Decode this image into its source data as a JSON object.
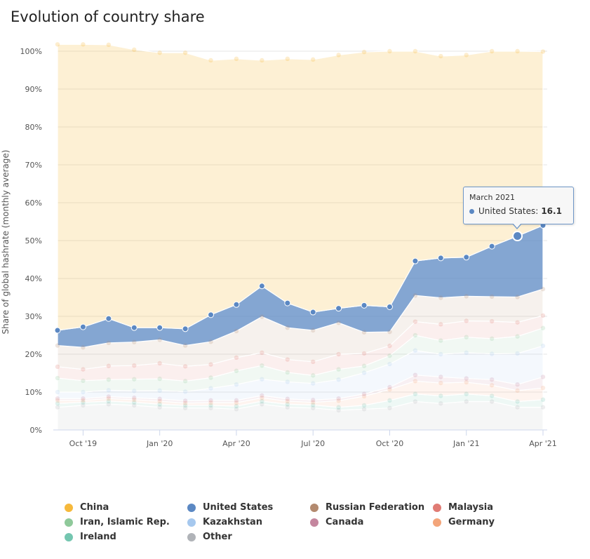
{
  "page": {
    "title": "Evolution of country share"
  },
  "chart_data": {
    "type": "area",
    "stacked": true,
    "ylabel": "Share of global hashrate (monthly average)",
    "xlabel": "",
    "ylim": [
      0,
      100
    ],
    "yticks": [
      "0%",
      "10%",
      "20%",
      "30%",
      "40%",
      "50%",
      "60%",
      "70%",
      "80%",
      "90%",
      "100%"
    ],
    "xtick_labels": [
      {
        "label": "Oct '19",
        "month": "2019-10"
      },
      {
        "label": "Jan '20",
        "month": "2020-01"
      },
      {
        "label": "Apr '20",
        "month": "2020-04"
      },
      {
        "label": "Jul '20",
        "month": "2020-07"
      },
      {
        "label": "Oct '20",
        "month": "2020-10"
      },
      {
        "label": "Jan '21",
        "month": "2021-01"
      },
      {
        "label": "Apr '21",
        "month": "2021-04"
      }
    ],
    "x": [
      "2019-09",
      "2019-10",
      "2019-11",
      "2019-12",
      "2020-01",
      "2020-02",
      "2020-03",
      "2020-04",
      "2020-05",
      "2020-06",
      "2020-07",
      "2020-08",
      "2020-09",
      "2020-10",
      "2020-11",
      "2020-12",
      "2021-01",
      "2021-02",
      "2021-03",
      "2021-04"
    ],
    "series": [
      {
        "name": "Other",
        "color": "#b0b3b8",
        "values": [
          6.0,
          6.5,
          6.8,
          6.5,
          6.0,
          5.8,
          5.8,
          5.5,
          6.8,
          6.0,
          5.8,
          5.2,
          5.5,
          5.8,
          7.5,
          7.0,
          7.5,
          7.5,
          6.0,
          6.0
        ]
      },
      {
        "name": "Ireland",
        "color": "#74c6b0",
        "values": [
          1.0,
          0.8,
          0.8,
          0.8,
          0.8,
          0.7,
          0.7,
          0.8,
          0.8,
          0.8,
          0.8,
          0.8,
          1.0,
          2.0,
          2.0,
          2.0,
          2.0,
          1.5,
          1.5,
          2.0
        ]
      },
      {
        "name": "Germany",
        "color": "#f3a57a",
        "values": [
          0.8,
          0.5,
          0.7,
          0.7,
          0.8,
          0.6,
          0.7,
          0.9,
          0.9,
          0.8,
          0.7,
          1.7,
          2.4,
          2.9,
          3.4,
          3.4,
          3.1,
          2.8,
          2.9,
          3.1
        ]
      },
      {
        "name": "Canada",
        "color": "#c4869e",
        "values": [
          0.5,
          0.5,
          0.5,
          0.5,
          0.6,
          0.6,
          0.6,
          0.6,
          0.6,
          0.6,
          0.6,
          0.6,
          0.6,
          0.6,
          1.6,
          1.6,
          1.0,
          1.5,
          1.6,
          2.9
        ]
      },
      {
        "name": "Kazakhstan",
        "color": "#a6c8ee",
        "values": [
          1.7,
          1.7,
          1.7,
          1.8,
          2.2,
          2.4,
          3.2,
          4.2,
          4.3,
          4.5,
          4.4,
          5.0,
          5.6,
          6.1,
          6.5,
          6.0,
          6.8,
          6.8,
          8.2,
          8.2
        ]
      },
      {
        "name": "Iran, Islamic Rep.",
        "color": "#8fc99a",
        "values": [
          3.7,
          3.0,
          2.8,
          3.1,
          3.1,
          2.8,
          2.8,
          3.6,
          3.6,
          2.5,
          2.1,
          2.7,
          1.8,
          2.2,
          4.0,
          3.6,
          4.1,
          4.0,
          4.5,
          4.7
        ]
      },
      {
        "name": "Malaysia",
        "color": "#e07b74",
        "values": [
          3.0,
          3.0,
          3.6,
          3.6,
          4.1,
          3.9,
          3.5,
          3.5,
          3.4,
          3.4,
          3.6,
          4.0,
          3.3,
          2.6,
          3.6,
          4.3,
          4.3,
          4.6,
          3.7,
          3.3
        ]
      },
      {
        "name": "Russian Federation",
        "color": "#b38a6f",
        "values": [
          5.6,
          5.8,
          6.1,
          6.2,
          6.2,
          5.5,
          6.0,
          7.0,
          9.5,
          8.4,
          8.3,
          8.3,
          5.6,
          3.7,
          6.9,
          7.0,
          6.5,
          6.5,
          6.7,
          7.0
        ]
      },
      {
        "name": "United States",
        "color": "#5b88c3",
        "values": [
          4.0,
          5.4,
          6.4,
          3.8,
          3.2,
          4.4,
          7.1,
          7.0,
          8.1,
          6.5,
          4.8,
          3.8,
          7.1,
          6.6,
          9.1,
          10.5,
          10.3,
          13.3,
          16.1,
          16.8
        ]
      },
      {
        "name": "China",
        "color": "#f6b93b",
        "values": [
          75.5,
          74.6,
          72.3,
          73.4,
          72.6,
          72.9,
          67.2,
          64.9,
          59.6,
          64.5,
          66.7,
          66.9,
          66.9,
          67.5,
          55.4,
          53.3,
          53.4,
          51.5,
          48.8,
          45.9
        ]
      }
    ],
    "legend_position": "bottom",
    "grid": true,
    "tooltip": {
      "date": "March 2021",
      "series": "United States",
      "label": "United States:",
      "value": "16.1",
      "month": "2021-03"
    },
    "legend": [
      {
        "name": "China",
        "color": "#f6b93b"
      },
      {
        "name": "United States",
        "color": "#5b88c3"
      },
      {
        "name": "Russian Federation",
        "color": "#b38a6f"
      },
      {
        "name": "Malaysia",
        "color": "#e07b74"
      },
      {
        "name": "Iran, Islamic Rep.",
        "color": "#8fc99a"
      },
      {
        "name": "Kazakhstan",
        "color": "#a6c8ee"
      },
      {
        "name": "Canada",
        "color": "#c4869e"
      },
      {
        "name": "Germany",
        "color": "#f3a57a"
      },
      {
        "name": "Ireland",
        "color": "#74c6b0"
      },
      {
        "name": "Other",
        "color": "#b0b3b8"
      }
    ]
  }
}
